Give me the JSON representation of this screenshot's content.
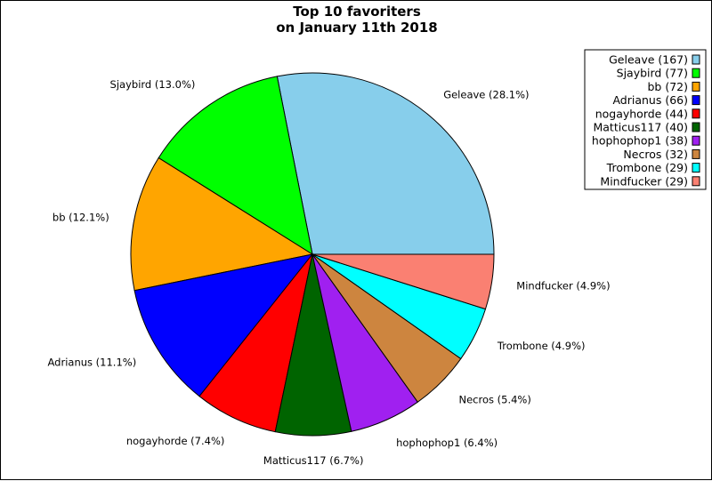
{
  "chart_data": {
    "type": "pie",
    "title": [
      "Top 10 favoriters",
      "on January 11th 2018"
    ],
    "slices": [
      {
        "name": "Geleave",
        "value": 167,
        "label": "Geleave (28.1%)",
        "legend": "Geleave (167)",
        "color": "#87ceeb"
      },
      {
        "name": "Sjaybird",
        "value": 77,
        "label": "Sjaybird (13.0%)",
        "legend": "Sjaybird (77)",
        "color": "#00ff00"
      },
      {
        "name": "bb",
        "value": 72,
        "label": "bb (12.1%)",
        "legend": "bb (72)",
        "color": "#ffa500"
      },
      {
        "name": "Adrianus",
        "value": 66,
        "label": "Adrianus (11.1%)",
        "legend": "Adrianus (66)",
        "color": "#0000ff"
      },
      {
        "name": "nogayhorde",
        "value": 44,
        "label": "nogayhorde (7.4%)",
        "legend": "nogayhorde (44)",
        "color": "#ff0000"
      },
      {
        "name": "Matticus117",
        "value": 40,
        "label": "Matticus117 (6.7%)",
        "legend": "Matticus117 (40)",
        "color": "#006400"
      },
      {
        "name": "hophophop1",
        "value": 38,
        "label": "hophophop1 (6.4%)",
        "legend": "hophophop1 (38)",
        "color": "#a020f0"
      },
      {
        "name": "Necros",
        "value": 32,
        "label": "Necros (5.4%)",
        "legend": "Necros (32)",
        "color": "#cd853f"
      },
      {
        "name": "Trombone",
        "value": 29,
        "label": "Trombone (4.9%)",
        "legend": "Trombone (29)",
        "color": "#00ffff"
      },
      {
        "name": "Mindfucker",
        "value": 29,
        "label": "Mindfucker (4.9%)",
        "legend": "Mindfucker (29)",
        "color": "#fa8072"
      }
    ],
    "start_angle_deg": 0,
    "direction": "counterclockwise",
    "legend_position": "top-right"
  }
}
